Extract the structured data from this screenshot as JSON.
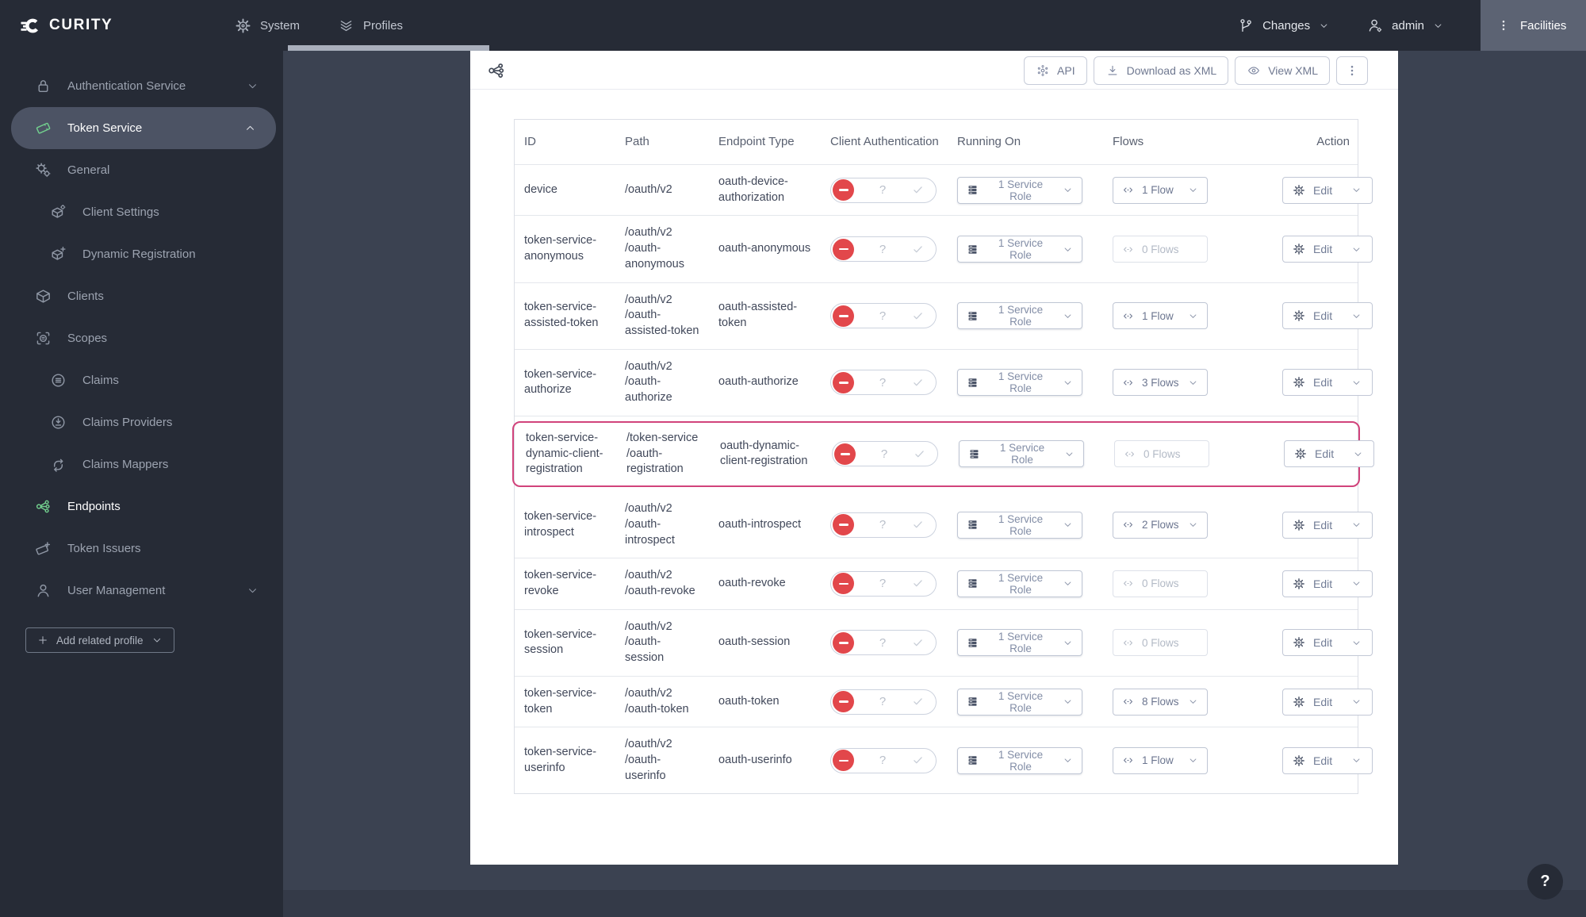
{
  "header": {
    "brand": "CURITY",
    "nav": [
      {
        "label": "System",
        "icon": "gear-icon",
        "active": false
      },
      {
        "label": "Profiles",
        "icon": "profiles-icon",
        "active": true
      }
    ],
    "changes": {
      "label": "Changes",
      "icon": "branch-icon"
    },
    "user": {
      "label": "admin",
      "icon": "user-gear-icon"
    },
    "facilities": {
      "label": "Facilities",
      "icon": "kebab-icon"
    }
  },
  "sidebar": {
    "items": [
      {
        "label": "Authentication Service",
        "icon": "lock-icon",
        "level": 1,
        "chevron": "down"
      },
      {
        "label": "Token Service",
        "icon": "ticket-icon",
        "level": 1,
        "chevron": "up",
        "selected": true,
        "accent": true
      },
      {
        "label": "General",
        "icon": "gears-icon",
        "level": 1
      },
      {
        "label": "Client Settings",
        "icon": "box-gear-icon",
        "level": 2
      },
      {
        "label": "Dynamic Registration",
        "icon": "box-plus-icon",
        "level": 2
      },
      {
        "label": "Clients",
        "icon": "box-icon",
        "level": 1
      },
      {
        "label": "Scopes",
        "icon": "scope-icon",
        "level": 1
      },
      {
        "label": "Claims",
        "icon": "claims-icon",
        "level": 2
      },
      {
        "label": "Claims Providers",
        "icon": "claims-providers-icon",
        "level": 2
      },
      {
        "label": "Claims Mappers",
        "icon": "claims-mappers-icon",
        "level": 2
      },
      {
        "label": "Endpoints",
        "icon": "endpoints-icon",
        "level": 1,
        "active": true,
        "accent": true
      },
      {
        "label": "Token Issuers",
        "icon": "ticket-plus-icon",
        "level": 1
      },
      {
        "label": "User Management",
        "icon": "user-icon",
        "level": 1,
        "chevron": "down"
      }
    ],
    "add_related_profile_label": "Add related profile"
  },
  "panel": {
    "toolbar": {
      "icon": "endpoints-icon",
      "api_label": "API",
      "download_label": "Download as XML",
      "view_label": "View XML"
    },
    "table": {
      "columns": [
        "ID",
        "Path",
        "Endpoint Type",
        "Client Authentication",
        "Running On",
        "Flows",
        "Action"
      ],
      "edit_label": "Edit",
      "toggle_unknown_glyph": "?",
      "rows": [
        {
          "id": "device",
          "path": "/oauth/v2",
          "endpoint_type": "oauth-device-authorization",
          "client_authentication": "disabled",
          "running_on": "1 Service Role",
          "flows": "1 Flow",
          "flows_active": true,
          "highlighted": false
        },
        {
          "id": "token-service-anonymous",
          "path": "/oauth/v2/oauth-anonymous",
          "endpoint_type": "oauth-anonymous",
          "client_authentication": "disabled",
          "running_on": "1 Service Role",
          "flows": "0 Flows",
          "flows_active": false,
          "highlighted": false
        },
        {
          "id": "token-service-assisted-token",
          "path": "/oauth/v2/oauth-assisted-token",
          "endpoint_type": "oauth-assisted-token",
          "client_authentication": "disabled",
          "running_on": "1 Service Role",
          "flows": "1 Flow",
          "flows_active": true,
          "highlighted": false
        },
        {
          "id": "token-service-authorize",
          "path": "/oauth/v2/oauth-authorize",
          "endpoint_type": "oauth-authorize",
          "client_authentication": "disabled",
          "running_on": "1 Service Role",
          "flows": "3 Flows",
          "flows_active": true,
          "highlighted": false
        },
        {
          "id": "token-service-dynamic-client-registration",
          "path": "/token-service/oauth-registration",
          "endpoint_type": "oauth-dynamic-client-registration",
          "client_authentication": "disabled",
          "running_on": "1 Service Role",
          "flows": "0 Flows",
          "flows_active": false,
          "highlighted": true
        },
        {
          "id": "token-service-introspect",
          "path": "/oauth/v2/oauth-introspect",
          "endpoint_type": "oauth-introspect",
          "client_authentication": "disabled",
          "running_on": "1 Service Role",
          "flows": "2 Flows",
          "flows_active": true,
          "highlighted": false
        },
        {
          "id": "token-service-revoke",
          "path": "/oauth/v2/oauth-revoke",
          "endpoint_type": "oauth-revoke",
          "client_authentication": "disabled",
          "running_on": "1 Service Role",
          "flows": "0 Flows",
          "flows_active": false,
          "highlighted": false
        },
        {
          "id": "token-service-session",
          "path": "/oauth/v2/oauth-session",
          "endpoint_type": "oauth-session",
          "client_authentication": "disabled",
          "running_on": "1 Service Role",
          "flows": "0 Flows",
          "flows_active": false,
          "highlighted": false
        },
        {
          "id": "token-service-token",
          "path": "/oauth/v2/oauth-token",
          "endpoint_type": "oauth-token",
          "client_authentication": "disabled",
          "running_on": "1 Service Role",
          "flows": "8 Flows",
          "flows_active": true,
          "highlighted": false
        },
        {
          "id": "token-service-userinfo",
          "path": "/oauth/v2/oauth-userinfo",
          "endpoint_type": "oauth-userinfo",
          "client_authentication": "disabled",
          "running_on": "1 Service Role",
          "flows": "1 Flow",
          "flows_active": true,
          "highlighted": false
        }
      ]
    }
  },
  "help_button_label": "?",
  "colors": {
    "header_bg": "#262b36",
    "content_bg": "#3b4251",
    "accent_green": "#72cf8e",
    "danger_red": "#e2474b",
    "highlight_pink": "#d1437b",
    "selected_pill": "#4c5364"
  }
}
